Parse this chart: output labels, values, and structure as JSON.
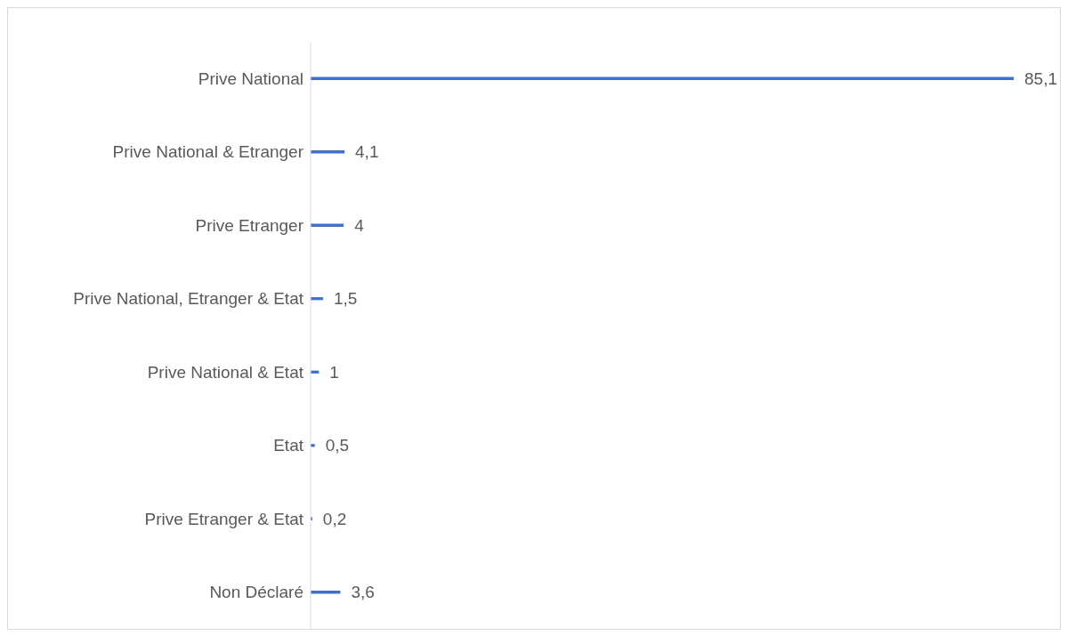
{
  "chart_data": {
    "type": "bar",
    "orientation": "horizontal",
    "categories": [
      "Prive National",
      "Prive National & Etranger",
      "Prive Etranger",
      "Prive National, Etranger & Etat",
      "Prive National & Etat",
      "Etat",
      "Prive Etranger & Etat",
      "Non Déclaré"
    ],
    "values": [
      85.1,
      4.1,
      4,
      1.5,
      1,
      0.5,
      0.2,
      3.6
    ],
    "value_labels": [
      "85,1",
      "4,1",
      "4",
      "1,5",
      "1",
      "0,5",
      "0,2",
      "3,6"
    ],
    "color": "#3f6fcb"
  }
}
